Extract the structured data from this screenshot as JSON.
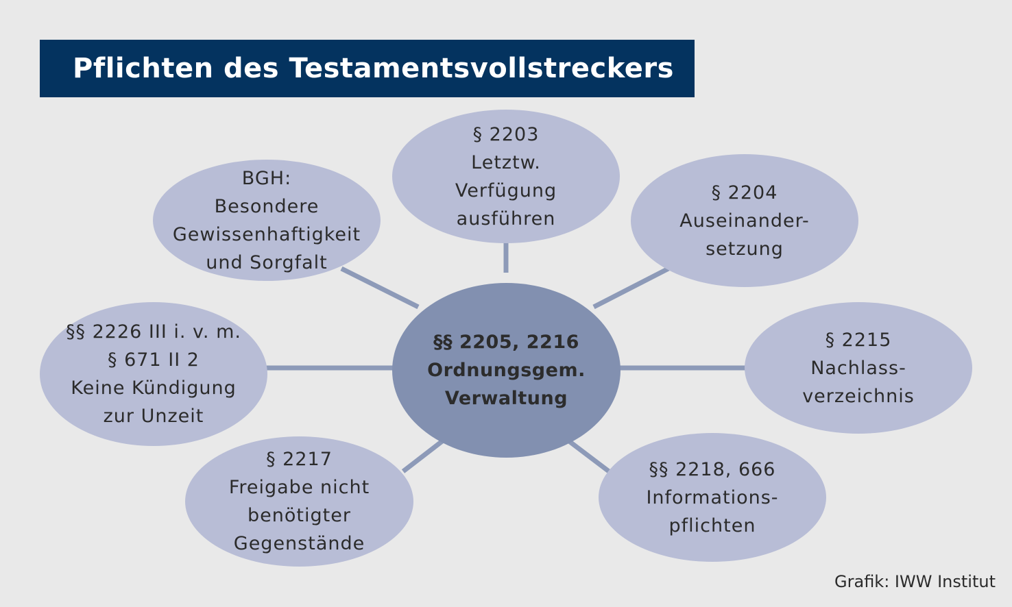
{
  "title": "Pflichten des Testamentsvollstreckers",
  "center": {
    "lines": [
      "§§ 2205, 2216",
      "Ordnungsgem.",
      "Verwaltung"
    ]
  },
  "nodes": {
    "bgh": {
      "lines": [
        "BGH:",
        "Besondere",
        "Gewissenhaftigkeit",
        "und Sorgfalt"
      ]
    },
    "p2203": {
      "lines": [
        "§ 2203",
        "Letztw.",
        "Verfügung",
        "ausführen"
      ]
    },
    "p2204": {
      "lines": [
        "§ 2204",
        "Auseinander-",
        "setzung"
      ]
    },
    "p2226": {
      "lines": [
        "§§ 2226 III i. v. m.",
        "§ 671 II 2",
        "Keine Kündigung",
        "zur Unzeit"
      ]
    },
    "p2215": {
      "lines": [
        "§ 2215",
        "Nachlass-",
        "verzeichnis"
      ]
    },
    "p2217": {
      "lines": [
        "§ 2217",
        "Freigabe nicht",
        "benötigter",
        "Gegenstände"
      ]
    },
    "p2218": {
      "lines": [
        "§§ 2218, 666",
        "Informations-",
        "pflichten"
      ]
    }
  },
  "credit": "Grafik: IWW Institut",
  "colors": {
    "background": "#e9e9e9",
    "title_bar": "#04335f",
    "node_fill": "#b8bdd6",
    "center_fill": "#8290b0",
    "connector": "#8d9ab8"
  }
}
